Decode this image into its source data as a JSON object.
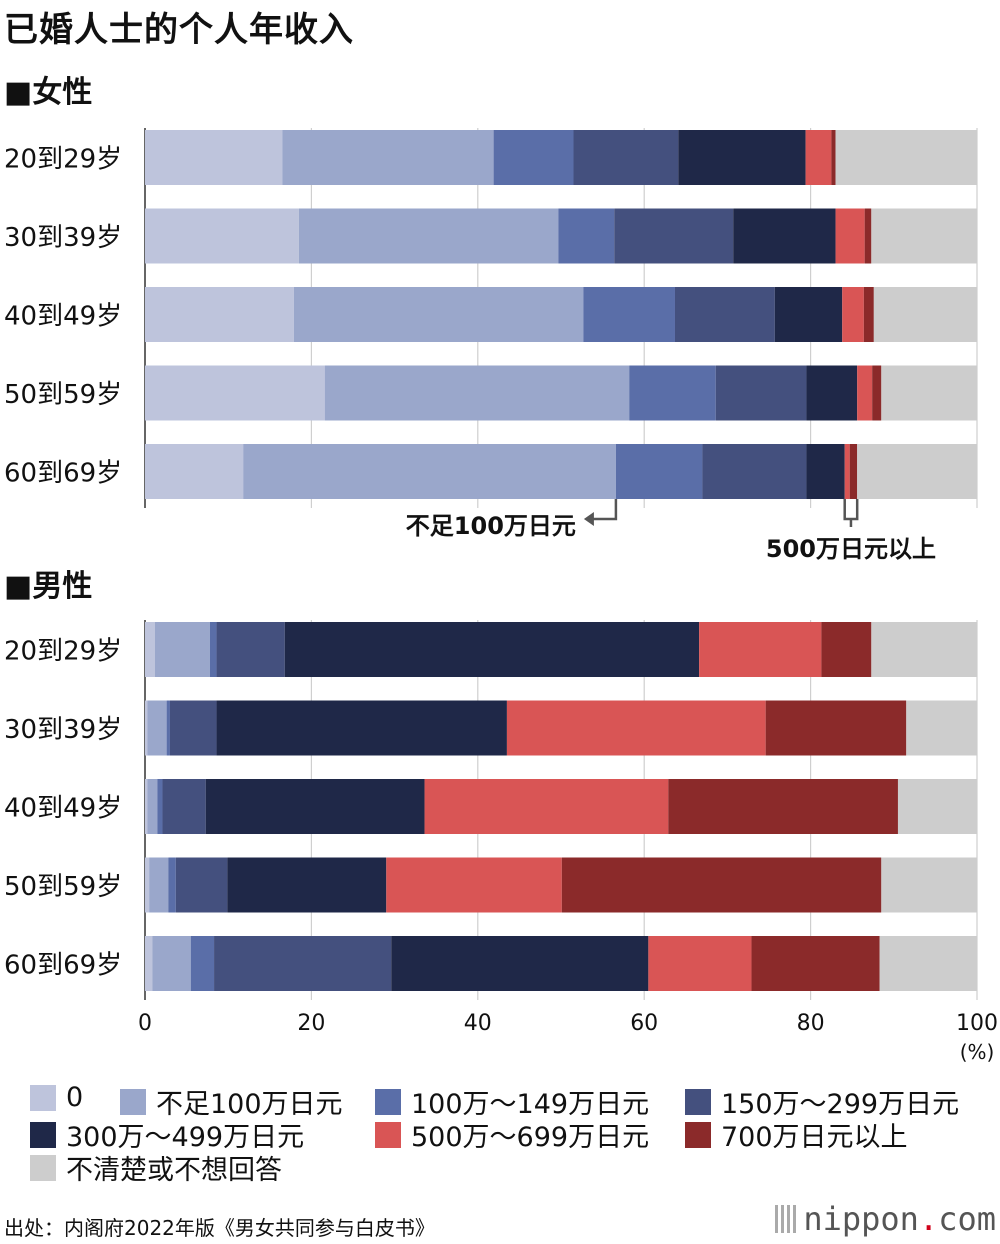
{
  "title": "已婚人士的个人年收入",
  "source": "出处：内阁府2022年版《男女共同参与白皮书》",
  "brand": {
    "prefix": "nippon",
    "dot": ".",
    "suffix": "com"
  },
  "unit_label": "(%)",
  "annotations": {
    "under100": "不足100万日元",
    "over500": "500万日元以上"
  },
  "legend": [
    {
      "label": "0",
      "color": "#bec4dc"
    },
    {
      "label": "不足100万日元",
      "color": "#9aa7cb"
    },
    {
      "label": "100万～149万日元",
      "color": "#5a6ea8"
    },
    {
      "label": "150万～299万日元",
      "color": "#44507e"
    },
    {
      "label": "300万～499万日元",
      "color": "#1f2848"
    },
    {
      "label": "500万～699万日元",
      "color": "#d95555"
    },
    {
      "label": "700万日元以上",
      "color": "#8b2a2a"
    },
    {
      "label": "不清楚或不想回答",
      "color": "#cdcdcd"
    }
  ],
  "chart_data": [
    {
      "type": "bar",
      "orientation": "horizontal",
      "stacked": true,
      "title": "■女性",
      "categories": [
        "20到29岁",
        "30到39岁",
        "40到49岁",
        "50到59岁",
        "60到69岁"
      ],
      "xlim": [
        0,
        100
      ],
      "series": [
        {
          "name": "0",
          "values": [
            16.5,
            18.5,
            17.9,
            21.6,
            11.8
          ]
        },
        {
          "name": "不足100万日元",
          "values": [
            25.4,
            31.2,
            34.8,
            36.6,
            44.8
          ]
        },
        {
          "name": "100万～149万日元",
          "values": [
            9.6,
            6.7,
            11.0,
            10.4,
            10.4
          ]
        },
        {
          "name": "150万～299万日元",
          "values": [
            12.6,
            14.3,
            12.0,
            10.9,
            12.5
          ]
        },
        {
          "name": "300万～499万日元",
          "values": [
            15.3,
            12.3,
            8.1,
            6.1,
            4.6
          ]
        },
        {
          "name": "500万～699万日元",
          "values": [
            3.1,
            3.5,
            2.6,
            1.8,
            0.6
          ]
        },
        {
          "name": "700万日元以上",
          "values": [
            0.5,
            0.8,
            1.2,
            1.1,
            0.9
          ]
        },
        {
          "name": "不清楚或不想回答",
          "values": [
            17.0,
            12.7,
            12.4,
            11.5,
            14.4
          ]
        }
      ]
    },
    {
      "type": "bar",
      "orientation": "horizontal",
      "stacked": true,
      "title": "■男性",
      "categories": [
        "20到29岁",
        "30到39岁",
        "40到49岁",
        "50到59岁",
        "60到69岁"
      ],
      "xlim": [
        0,
        100
      ],
      "xticks": [
        0,
        20,
        40,
        60,
        80,
        100
      ],
      "xlabel": "(%)",
      "series": [
        {
          "name": "0",
          "values": [
            1.2,
            0.3,
            0.3,
            0.5,
            0.9
          ]
        },
        {
          "name": "不足100万日元",
          "values": [
            6.6,
            2.3,
            1.2,
            2.3,
            4.6
          ]
        },
        {
          "name": "100万～149万日元",
          "values": [
            0.8,
            0.4,
            0.6,
            0.9,
            2.8
          ]
        },
        {
          "name": "150万～299万日元",
          "values": [
            8.2,
            5.6,
            5.2,
            6.2,
            21.3
          ]
        },
        {
          "name": "300万～499万日元",
          "values": [
            49.8,
            34.9,
            26.3,
            19.1,
            30.9
          ]
        },
        {
          "name": "500万～699万日元",
          "values": [
            14.7,
            31.1,
            29.3,
            21.1,
            12.4
          ]
        },
        {
          "name": "700万日元以上",
          "values": [
            6.0,
            16.9,
            27.6,
            38.4,
            15.4
          ]
        },
        {
          "name": "不清楚或不想回答",
          "values": [
            12.7,
            8.5,
            9.5,
            11.5,
            11.7
          ]
        }
      ]
    }
  ]
}
